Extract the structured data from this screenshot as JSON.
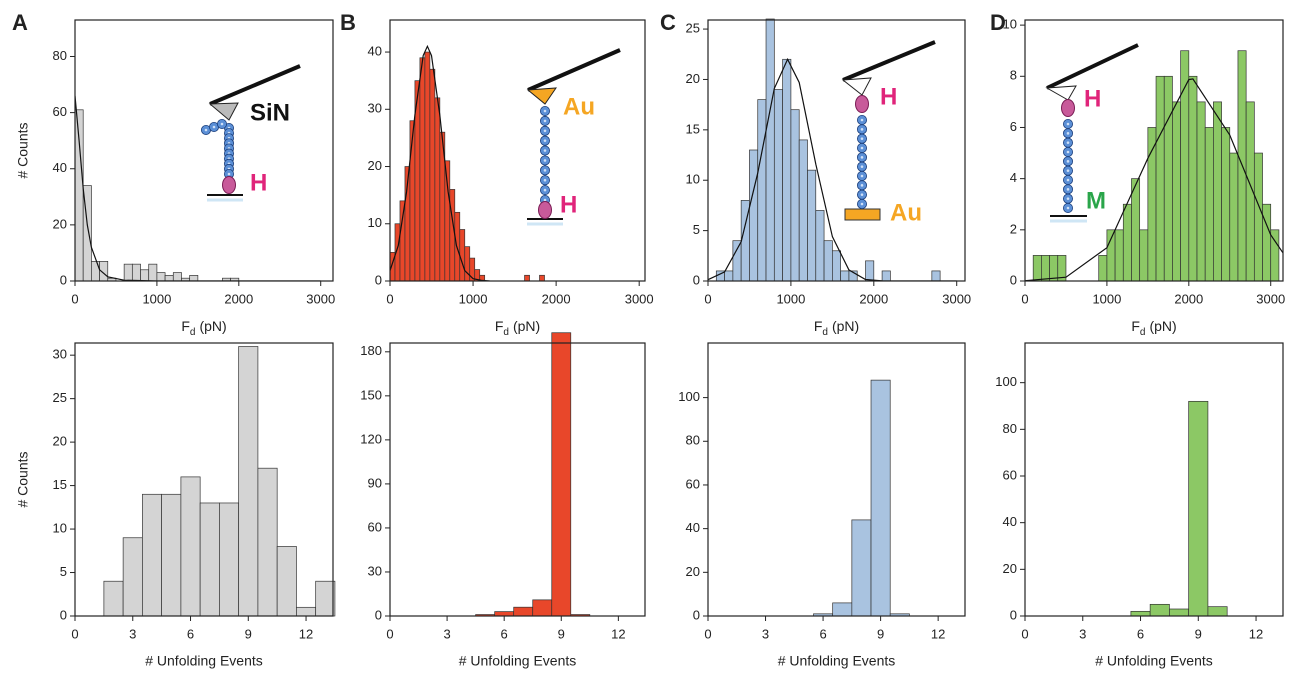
{
  "chart_data": [
    {
      "type": "histogram",
      "panel": "A",
      "color": "#d4d4d4",
      "bins": [
        0,
        100,
        200,
        300,
        400,
        500,
        600,
        700,
        800,
        900,
        1000,
        1100,
        1200,
        1300,
        1400,
        1500,
        1600,
        1700,
        1800,
        1900,
        2000
      ],
      "values": [
        61,
        34,
        7,
        7,
        1,
        0,
        6,
        6,
        4,
        6,
        3,
        2,
        3,
        1,
        2,
        0,
        0,
        0,
        1,
        1
      ],
      "fit": {
        "x": [
          0,
          50,
          100,
          150,
          200,
          300,
          400,
          600,
          1000,
          3000
        ],
        "values": [
          66,
          50,
          33,
          20,
          12,
          4,
          1.5,
          0.3,
          0,
          0
        ]
      },
      "xlim": [
        0,
        3150
      ],
      "ylim": [
        0,
        93
      ],
      "xticks": [
        0,
        1000,
        2000,
        3000
      ],
      "yticks": [
        0,
        20,
        40,
        60,
        80
      ],
      "xlabel": "F",
      "xlabel_sub": "d",
      "xlabel_unit": "(pN)",
      "ylabel": "# Counts",
      "inset_labels": [
        {
          "text": "SiN",
          "color": "#111111"
        },
        {
          "text": "H",
          "color": "#e0247a"
        }
      ]
    },
    {
      "type": "histogram",
      "panel": "B",
      "color": "#e8472a",
      "bins": [
        0,
        60,
        120,
        180,
        240,
        300,
        360,
        420,
        480,
        540,
        600,
        660,
        720,
        780,
        840,
        900,
        960,
        1020,
        1080,
        1140,
        1200,
        1260,
        1320,
        1380,
        1440,
        1500,
        1560,
        1620,
        1680,
        1740,
        1800,
        1860
      ],
      "values": [
        5,
        10,
        14,
        20,
        28,
        35,
        39,
        40,
        37,
        32,
        26,
        21,
        16,
        12,
        9,
        6,
        4,
        2,
        1,
        0,
        0,
        0,
        0,
        0,
        0,
        0,
        0,
        1,
        0,
        0,
        1
      ],
      "fit": {
        "x": [
          0,
          100,
          200,
          300,
          400,
          450,
          500,
          600,
          700,
          800,
          900,
          1000,
          1100,
          1200
        ],
        "values": [
          1.8,
          6.2,
          15.6,
          29,
          39.4,
          41,
          39.4,
          29,
          15.6,
          6.2,
          1.8,
          0.4,
          0.1,
          0
        ]
      },
      "xlim": [
        0,
        3070
      ],
      "ylim": [
        0,
        45.6
      ],
      "xticks": [
        0,
        1000,
        2000,
        3000
      ],
      "yticks": [
        0,
        10,
        20,
        30,
        40
      ],
      "xlabel": "F",
      "xlabel_sub": "d",
      "xlabel_unit": "(pN)",
      "inset_labels": [
        {
          "text": "Au",
          "color": "#f5a623"
        },
        {
          "text": "H",
          "color": "#e0247a"
        }
      ]
    },
    {
      "type": "histogram",
      "panel": "C",
      "color": "#a9c3e0",
      "bins": [
        100,
        200,
        300,
        400,
        500,
        600,
        700,
        800,
        900,
        1000,
        1100,
        1200,
        1300,
        1400,
        1500,
        1600,
        1700,
        1800,
        1900,
        2000,
        2100,
        2200,
        2300,
        2400,
        2500,
        2600,
        2700,
        2800
      ],
      "values": [
        1,
        1,
        4,
        8,
        13,
        18,
        26,
        19,
        22,
        17,
        14,
        11,
        7,
        4,
        3,
        1,
        1,
        0,
        2,
        0,
        1,
        0,
        0,
        0,
        0,
        0,
        1
      ],
      "fit": {
        "x": [
          0,
          200,
          400,
          600,
          800,
          960,
          1100,
          1300,
          1500,
          1700,
          1900,
          2100,
          2500,
          3000
        ],
        "values": [
          0.13,
          0.9,
          3.9,
          10.7,
          19.1,
          22,
          19.7,
          11.6,
          4.4,
          1.1,
          0.15,
          0.01,
          0,
          0
        ]
      },
      "xlim": [
        0,
        3100
      ],
      "ylim": [
        0,
        25.9
      ],
      "xticks": [
        0,
        1000,
        2000,
        3000
      ],
      "yticks": [
        0,
        5,
        10,
        15,
        20,
        25
      ],
      "xlabel": "F",
      "xlabel_sub": "d",
      "xlabel_unit": "(pN)",
      "inset_labels": [
        {
          "text": "H",
          "color": "#e0247a"
        },
        {
          "text": "Au",
          "color": "#f5a623"
        }
      ]
    },
    {
      "type": "histogram",
      "panel": "D",
      "color": "#8cc865",
      "bins": [
        100,
        200,
        300,
        400,
        500,
        600,
        700,
        800,
        900,
        1000,
        1100,
        1200,
        1300,
        1400,
        1500,
        1600,
        1700,
        1800,
        1900,
        2000,
        2100,
        2200,
        2300,
        2400,
        2500,
        2600,
        2700,
        2800,
        2900,
        3000,
        3100
      ],
      "values": [
        1,
        1,
        1,
        1,
        0,
        0,
        0,
        0,
        1,
        2,
        2,
        3,
        4,
        2,
        6,
        8,
        8,
        7,
        9,
        8,
        7,
        6,
        7,
        6,
        5,
        9,
        7,
        5,
        3,
        2
      ],
      "fit": {
        "x": [
          0,
          500,
          1000,
          1500,
          2000,
          2050,
          2500,
          3000,
          3150
        ],
        "values": [
          0.01,
          0.15,
          1.3,
          4.8,
          7.87,
          7.9,
          5.7,
          1.8,
          1.1
        ]
      },
      "xlim": [
        0,
        3150
      ],
      "ylim": [
        0,
        10.2
      ],
      "xticks": [
        0,
        1000,
        2000,
        3000
      ],
      "yticks": [
        0,
        2,
        4,
        6,
        8,
        10
      ],
      "xlabel": "F",
      "xlabel_sub": "d",
      "xlabel_unit": "(pN)",
      "inset_labels": [
        {
          "text": "H",
          "color": "#e0247a"
        },
        {
          "text": "M",
          "color": "#2aa54a"
        }
      ]
    },
    {
      "type": "histogram",
      "color": "#d4d4d4",
      "bins": [
        1.5,
        2.5,
        3.5,
        4.5,
        5.5,
        6.5,
        7.5,
        8.5,
        9.5,
        10.5,
        11.5,
        12.5,
        13.5
      ],
      "values": [
        4,
        9,
        14,
        14,
        16,
        13,
        13,
        31,
        17,
        8,
        1,
        4
      ],
      "xlim": [
        0,
        13.4
      ],
      "ylim": [
        0,
        31.4
      ],
      "xticks": [
        0,
        3,
        6,
        9,
        12
      ],
      "yticks": [
        0,
        5,
        10,
        15,
        20,
        25,
        30
      ],
      "xlabel": "# Unfolding Events",
      "ylabel": "# Counts"
    },
    {
      "type": "histogram",
      "color": "#e8472a",
      "bins": [
        4.5,
        5.5,
        6.5,
        7.5,
        8.5,
        9.5,
        10.5
      ],
      "values": [
        1,
        3,
        6,
        11,
        193,
        1
      ],
      "xlim": [
        0,
        13.4
      ],
      "ylim": [
        0,
        186
      ],
      "xticks": [
        0,
        3,
        6,
        9,
        12
      ],
      "yticks": [
        0,
        30,
        60,
        90,
        120,
        150,
        180
      ],
      "xlabel": "# Unfolding Events"
    },
    {
      "type": "histogram",
      "color": "#a9c3e0",
      "bins": [
        5.5,
        6.5,
        7.5,
        8.5,
        9.5,
        10.5
      ],
      "values": [
        1,
        6,
        44,
        108,
        1
      ],
      "xlim": [
        0,
        13.4
      ],
      "ylim": [
        0,
        125
      ],
      "xticks": [
        0,
        3,
        6,
        9,
        12
      ],
      "yticks": [
        0,
        20,
        40,
        60,
        80,
        100
      ],
      "xlabel": "# Unfolding Events"
    },
    {
      "type": "histogram",
      "color": "#8cc865",
      "bins": [
        5.5,
        6.5,
        7.5,
        8.5,
        9.5,
        10.5
      ],
      "values": [
        2,
        5,
        3,
        92,
        4
      ],
      "xlim": [
        0,
        13.4
      ],
      "ylim": [
        0,
        117
      ],
      "xticks": [
        0,
        3,
        6,
        9,
        12
      ],
      "yticks": [
        0,
        20,
        40,
        60,
        80,
        100
      ],
      "xlabel": "# Unfolding Events"
    }
  ]
}
